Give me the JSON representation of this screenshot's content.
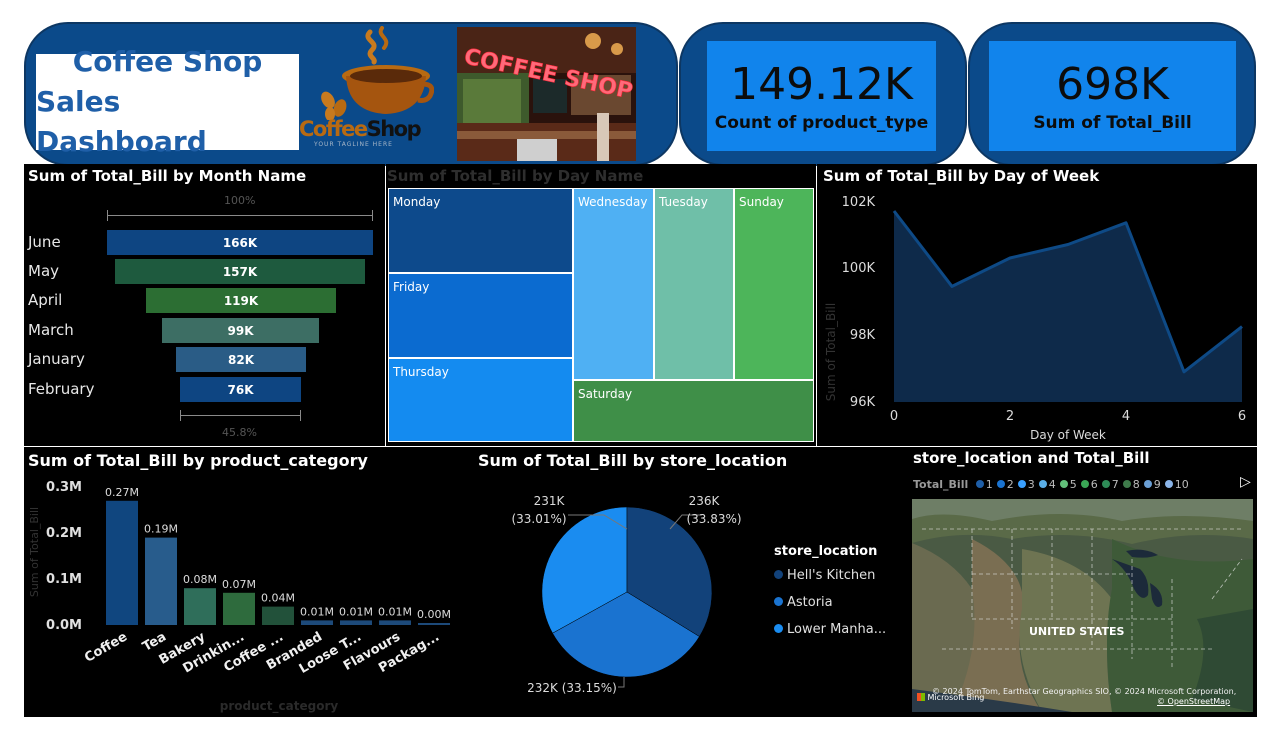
{
  "header": {
    "title_line1": "Coffee Shop",
    "title_line2": "Sales Dashboard",
    "logo_text_a": "Coffee",
    "logo_text_b": "Shop",
    "logo_tagline": "YOUR TAGLINE HERE",
    "photo_sign": "COFFEE SHOP"
  },
  "kpis": [
    {
      "value": "149.12K",
      "label": "Count of product_type"
    },
    {
      "value": "698K",
      "label": "Sum of Total_Bill"
    }
  ],
  "funnel": {
    "title": "Sum of Total_Bill by Month Name",
    "top_pct": "100%",
    "bottom_pct": "45.8%",
    "months": [
      "June",
      "May",
      "April",
      "March",
      "January",
      "February"
    ],
    "labels": [
      "166K",
      "157K",
      "119K",
      "99K",
      "82K",
      "76K"
    ]
  },
  "treemap": {
    "title": "Sum of Total_Bill by Day Name",
    "days": [
      "Monday",
      "Friday",
      "Thursday",
      "Wednesday",
      "Tuesday",
      "Sunday",
      "Saturday"
    ]
  },
  "line": {
    "title": "Sum of Total_Bill by Day of Week",
    "ylabel": "Sum of Total_Bill",
    "xlabel": "Day of Week",
    "yticks": [
      "102K",
      "100K",
      "98K",
      "96K"
    ],
    "xticks": [
      "0",
      "2",
      "4",
      "6"
    ]
  },
  "bar": {
    "title": "Sum of Total_Bill by product_category",
    "ylabel": "Sum of Total_Bill",
    "xlabel": "product_category",
    "yticks": [
      "0.3M",
      "0.2M",
      "0.1M",
      "0.0M"
    ],
    "categories": [
      "Coffee",
      "Tea",
      "Bakery",
      "Drinkin...",
      "Coffee ...",
      "Branded",
      "Loose T...",
      "Flavours",
      "Packag..."
    ],
    "labels": [
      "0.27M",
      "0.19M",
      "0.08M",
      "0.07M",
      "0.04M",
      "0.01M",
      "0.01M",
      "0.01M",
      "0.00M"
    ]
  },
  "pie": {
    "title": "Sum of Total_Bill by store_location",
    "label_a1": "231K",
    "label_a2": "(33.01%)",
    "label_b1": "236K",
    "label_b2": "(33.83%)",
    "label_c": "232K (33.15%)",
    "legend_title": "store_location",
    "legend": [
      "Hell's Kitchen",
      "Astoria",
      "Lower Manha..."
    ],
    "colors": [
      "#12427a",
      "#1a73d0",
      "#1a8cf0"
    ]
  },
  "map": {
    "title": "store_location and Total_Bill",
    "legend_label": "Total_Bill",
    "legend_items": [
      "1",
      "2",
      "3",
      "4",
      "5",
      "6",
      "7",
      "8",
      "9",
      "10"
    ],
    "legend_colors": [
      "#1f5fa8",
      "#1a73d0",
      "#3aa0ff",
      "#5aaee6",
      "#62c07a",
      "#3aa655",
      "#2e8b57",
      "#3e7a4a",
      "#6a9ed4",
      "#8ab4e8"
    ],
    "country_label": "UNITED STATES",
    "attribution": "© 2024 TomTom, Earthstar Geographics SIO, © 2024 Microsoft Corporation,",
    "bing": "Microsoft Bing",
    "osm": "© OpenStreetMap"
  },
  "chart_data": [
    {
      "type": "bar",
      "title": "Sum of Total_Bill by Month Name",
      "categories": [
        "June",
        "May",
        "April",
        "March",
        "January",
        "February"
      ],
      "values": [
        166,
        157,
        119,
        99,
        82,
        76
      ]
    },
    {
      "type": "heatmap",
      "title": "Sum of Total_Bill by Day Name",
      "categories": [
        "Monday",
        "Friday",
        "Thursday",
        "Wednesday",
        "Tuesday",
        "Sunday",
        "Saturday"
      ],
      "colors": [
        "#0d4a8c",
        "#0b6bd0",
        "#148bf0",
        "#4fb0f3",
        "#6fbfa8",
        "#4db55a",
        "#3f8f48"
      ]
    },
    {
      "type": "area",
      "title": "Sum of Total_Bill by Day of Week",
      "xlabel": "Day of Week",
      "ylabel": "Sum of Total_Bill",
      "x": [
        0,
        1,
        2,
        3,
        4,
        5,
        6
      ],
      "y": [
        101.7,
        99.45,
        100.3,
        100.7,
        101.35,
        96.9,
        98.25
      ],
      "ylim": [
        96,
        102
      ],
      "xlim": [
        0,
        6
      ]
    },
    {
      "type": "bar",
      "title": "Sum of Total_Bill by product_category",
      "xlabel": "product_category",
      "ylabel": "Sum of Total_Bill",
      "categories": [
        "Coffee",
        "Tea",
        "Bakery",
        "Drinkin...",
        "Coffee ...",
        "Branded",
        "Loose T...",
        "Flavours",
        "Packag..."
      ],
      "values": [
        0.27,
        0.19,
        0.08,
        0.07,
        0.04,
        0.01,
        0.01,
        0.01,
        0.003
      ],
      "ylim": [
        0,
        0.3
      ],
      "colors": [
        "#10467f",
        "#285c8c",
        "#2f6e5a",
        "#2e6b3d",
        "#22513a",
        "#1d4a7a",
        "#1d4a7a",
        "#1d4a7a",
        "#1d4a7a"
      ]
    },
    {
      "type": "pie",
      "title": "Sum of Total_Bill by store_location",
      "categories": [
        "Hell's Kitchen",
        "Astoria",
        "Lower Manha..."
      ],
      "values": [
        236,
        232,
        231
      ]
    }
  ]
}
